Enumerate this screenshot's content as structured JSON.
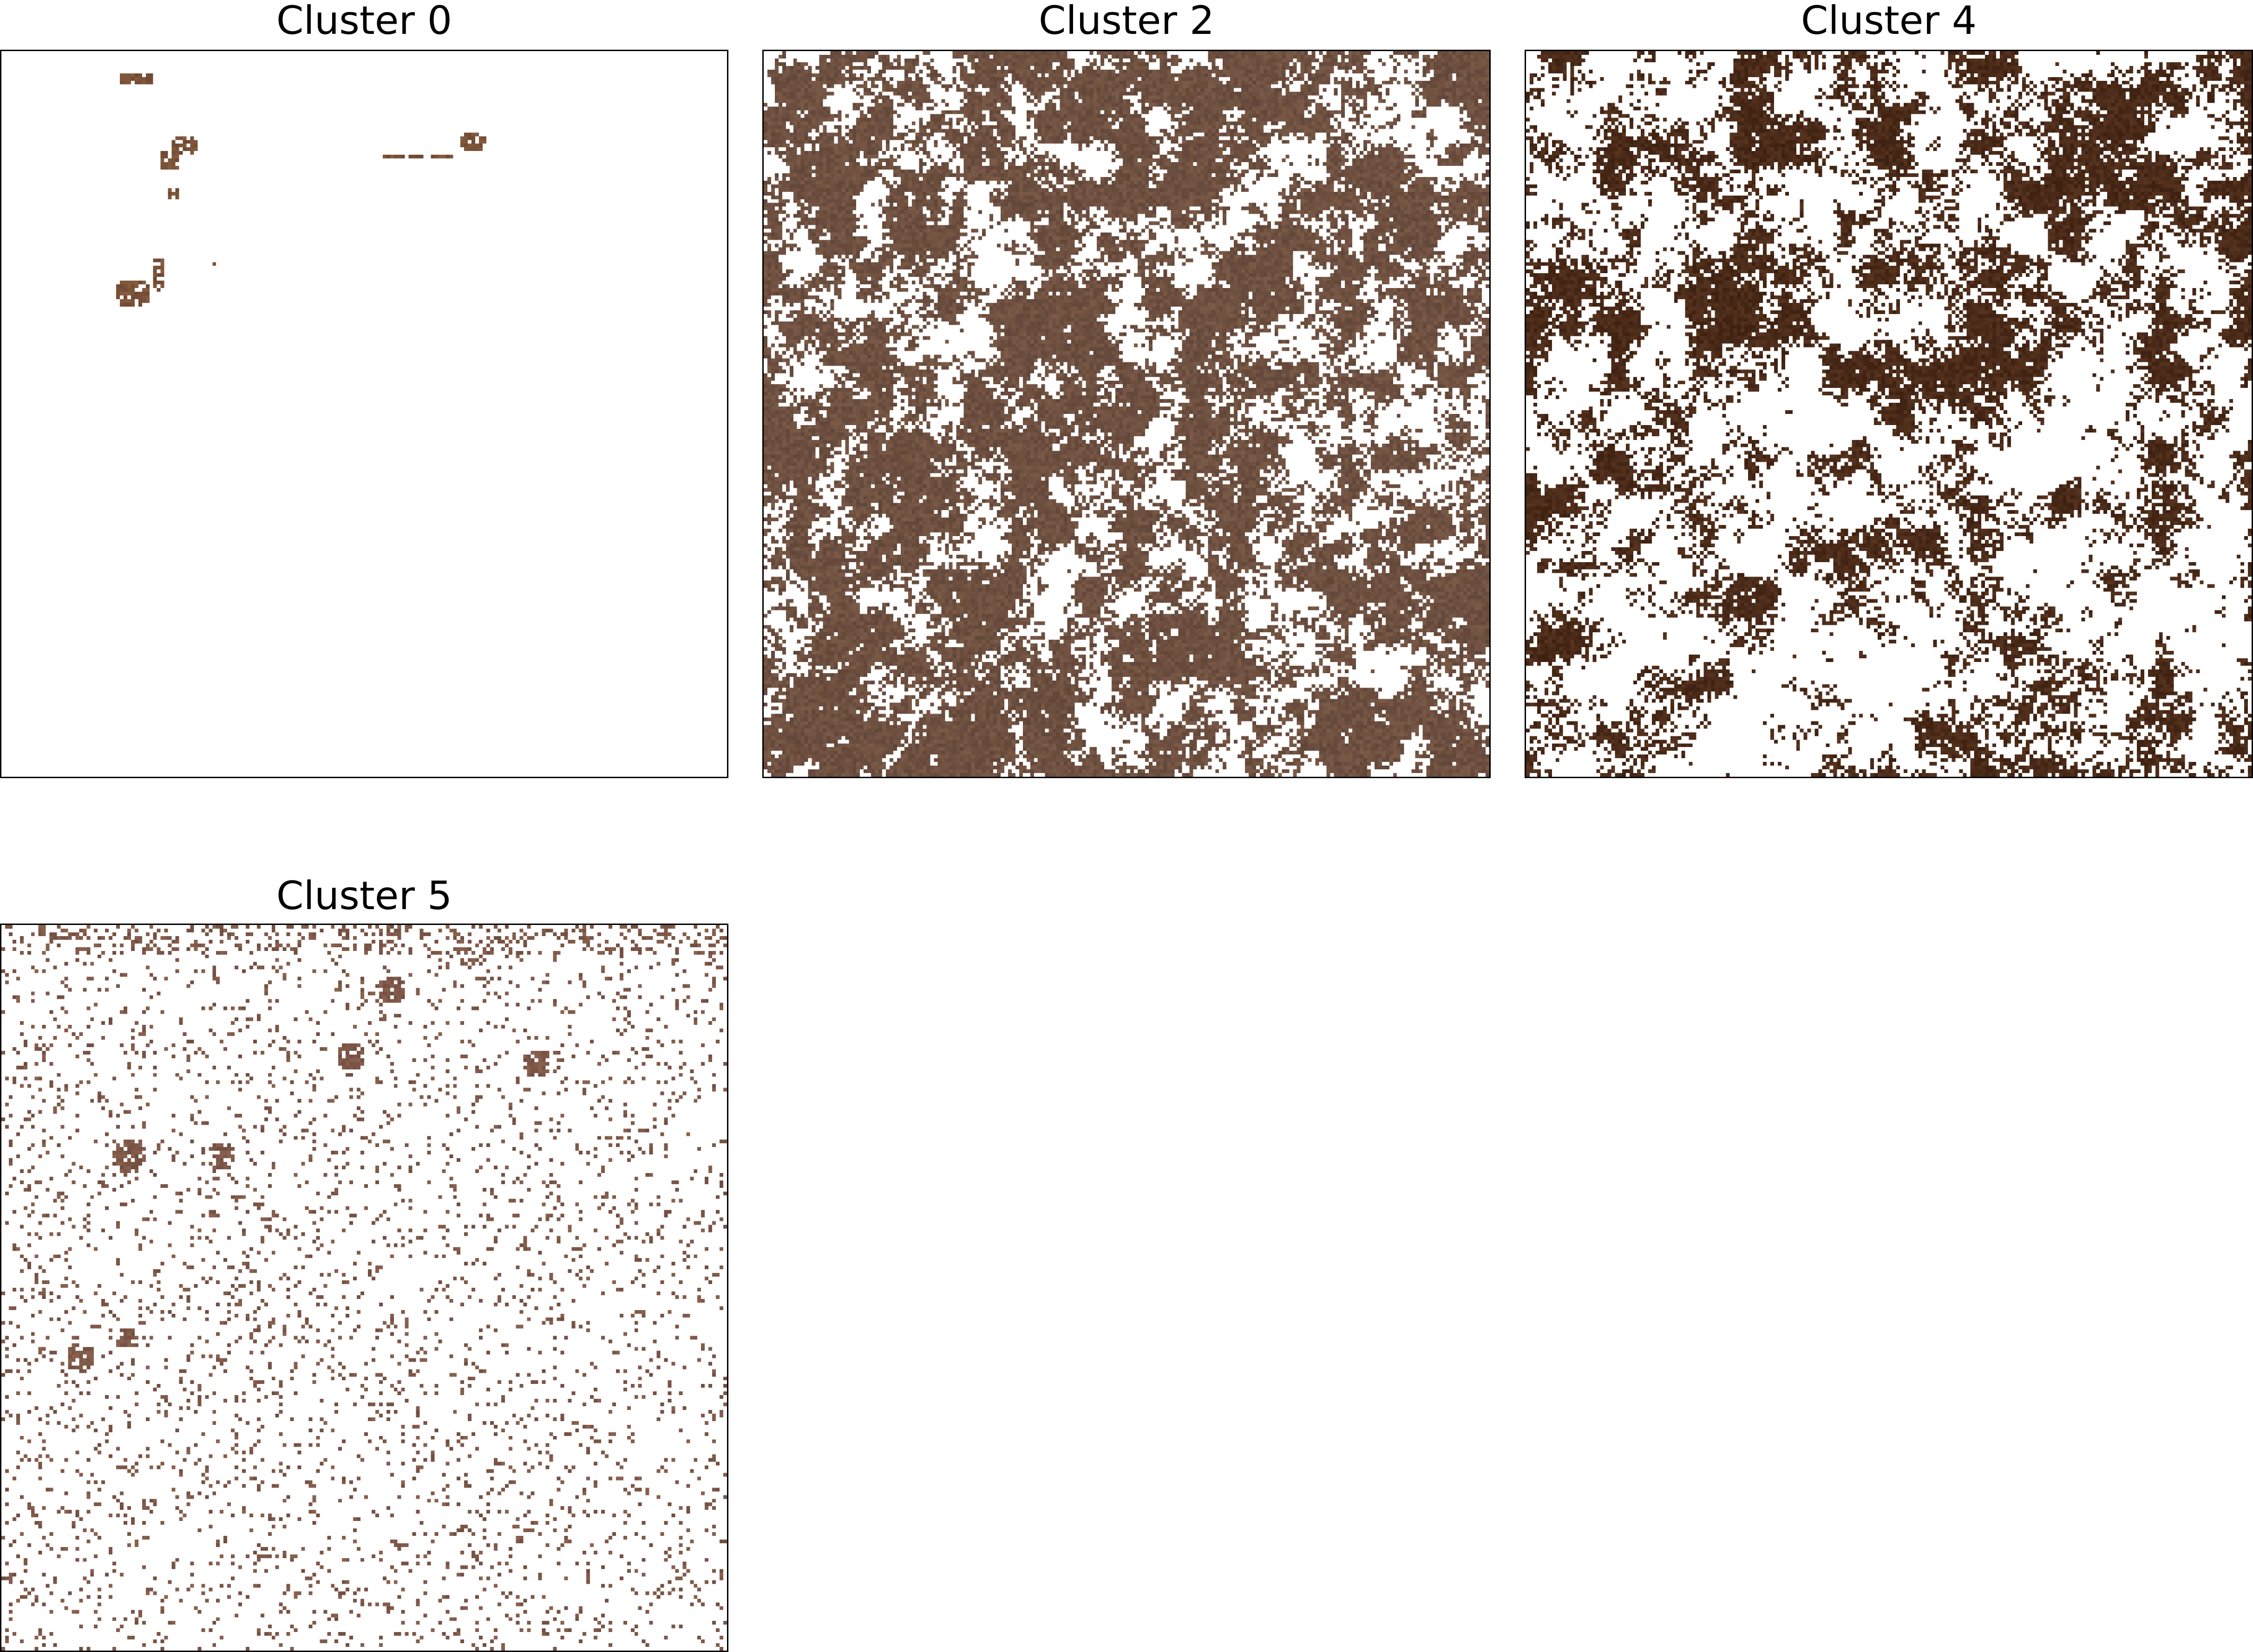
{
  "figure": {
    "panels": [
      {
        "id": "cluster-0",
        "title": "Cluster 0",
        "pixel_color": "#7a5238",
        "pattern": "sparse-isolated-blobs"
      },
      {
        "id": "cluster-2",
        "title": "Cluster 2",
        "pixel_color": "#6e5040",
        "pattern": "dense-mottled"
      },
      {
        "id": "cluster-4",
        "title": "Cluster 4",
        "pixel_color": "#4a2a18",
        "pattern": "medium-dense-clumped"
      },
      {
        "id": "cluster-5",
        "title": "Cluster 5",
        "pixel_color": "#7e5848",
        "pattern": "sparse-speckled"
      }
    ],
    "background_color": "#ffffff",
    "frame_color": "#000000"
  }
}
